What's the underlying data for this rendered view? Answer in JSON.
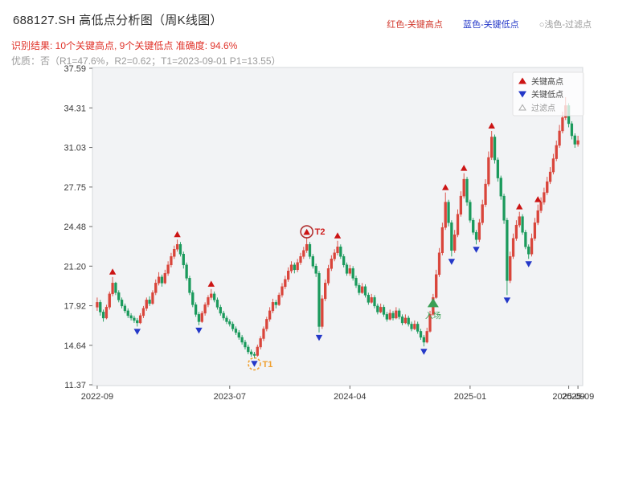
{
  "header": {
    "title": "688127.SH 高低点分析图（周K线图）",
    "legend_top": [
      {
        "label": "红色-关键高点",
        "color": "#d23a2e"
      },
      {
        "label": "蓝色-关键低点",
        "color": "#2438c8"
      },
      {
        "label": "○浅色-过滤点",
        "color": "#9a9a9a"
      }
    ],
    "result_line": "识别结果: 10个关键高点, 9个关键低点  准确度: 94.6%",
    "result_color": "#e0342b",
    "quality_line": "优质：否（R1=47.6%，R2=0.62；T1=2023-09-01 P1=13.55）",
    "quality_color": "#9b9b9b"
  },
  "chart_data": {
    "type": "candlestick",
    "title": "688127.SH 高低点分析图（周K线图）",
    "period": "weekly",
    "xlabel": "",
    "ylabel": "",
    "ylim": [
      11.37,
      37.59
    ],
    "y_ticks": [
      37.59,
      34.31,
      31.03,
      27.75,
      24.48,
      21.2,
      17.92,
      14.64,
      11.37
    ],
    "x_ticks": [
      {
        "week": 0,
        "label": "2022-09"
      },
      {
        "week": 43,
        "label": "2023-07"
      },
      {
        "week": 82,
        "label": "2024-04"
      },
      {
        "week": 121,
        "label": "2025-01"
      },
      {
        "week": 153,
        "label": "2025-09"
      },
      {
        "week": 156,
        "label": "2025-09"
      }
    ],
    "legend_items": [
      {
        "label": "关键高点",
        "type": "high"
      },
      {
        "label": "关键低点",
        "type": "low"
      },
      {
        "label": "过滤点",
        "type": "filtered"
      }
    ],
    "colors": {
      "up": "#d9453b",
      "down": "#1b9a5c",
      "high_marker": "#cc1414",
      "low_marker": "#2438c8",
      "entry": "#3aa055",
      "t1": "#f0a030",
      "t2": "#b03030",
      "panel": "#f2f3f5",
      "panel_border": "#d5d8dc",
      "tick_text": "#3a3a3a"
    },
    "candles": [
      [
        17.8,
        18.6,
        17.5,
        18.2
      ],
      [
        18.2,
        18.4,
        17.1,
        17.4
      ],
      [
        17.4,
        17.6,
        16.6,
        16.9
      ],
      [
        16.9,
        18.0,
        16.8,
        17.8
      ],
      [
        17.8,
        19.1,
        17.6,
        18.9
      ],
      [
        18.9,
        20.3,
        18.7,
        19.8
      ],
      [
        19.8,
        19.9,
        18.8,
        19.0
      ],
      [
        19.0,
        19.2,
        18.2,
        18.4
      ],
      [
        18.4,
        18.6,
        17.7,
        17.9
      ],
      [
        17.9,
        18.1,
        17.3,
        17.5
      ],
      [
        17.5,
        17.7,
        16.9,
        17.1
      ],
      [
        17.1,
        17.3,
        16.7,
        16.9
      ],
      [
        16.9,
        17.1,
        16.5,
        16.7
      ],
      [
        16.7,
        16.9,
        16.2,
        16.5
      ],
      [
        16.5,
        17.3,
        16.4,
        17.1
      ],
      [
        17.1,
        17.9,
        16.9,
        17.7
      ],
      [
        17.7,
        18.6,
        17.5,
        18.4
      ],
      [
        18.4,
        18.7,
        17.9,
        18.1
      ],
      [
        18.1,
        19.2,
        18.0,
        19.0
      ],
      [
        19.0,
        20.1,
        18.8,
        19.8
      ],
      [
        19.8,
        20.7,
        19.6,
        20.3
      ],
      [
        20.3,
        20.5,
        19.5,
        19.8
      ],
      [
        19.8,
        20.9,
        19.7,
        20.6
      ],
      [
        20.6,
        21.6,
        20.4,
        21.3
      ],
      [
        21.3,
        22.3,
        21.1,
        22.0
      ],
      [
        22.0,
        22.9,
        21.8,
        22.6
      ],
      [
        22.6,
        23.4,
        22.4,
        23.0
      ],
      [
        23.0,
        23.2,
        22.0,
        22.2
      ],
      [
        22.2,
        22.4,
        21.0,
        21.3
      ],
      [
        21.3,
        21.5,
        20.0,
        20.2
      ],
      [
        20.2,
        20.4,
        18.8,
        19.0
      ],
      [
        19.0,
        19.2,
        17.8,
        18.0
      ],
      [
        18.0,
        18.2,
        17.0,
        17.2
      ],
      [
        17.2,
        17.4,
        16.3,
        16.6
      ],
      [
        16.6,
        17.5,
        16.5,
        17.3
      ],
      [
        17.3,
        18.2,
        17.1,
        18.0
      ],
      [
        18.0,
        18.8,
        17.8,
        18.6
      ],
      [
        18.6,
        19.3,
        18.4,
        18.9
      ],
      [
        18.9,
        19.1,
        18.2,
        18.4
      ],
      [
        18.4,
        18.6,
        17.6,
        17.8
      ],
      [
        17.8,
        18.0,
        17.1,
        17.3
      ],
      [
        17.3,
        17.5,
        16.7,
        16.9
      ],
      [
        16.9,
        17.1,
        16.4,
        16.6
      ],
      [
        16.6,
        16.8,
        16.2,
        16.4
      ],
      [
        16.4,
        16.6,
        15.8,
        16.0
      ],
      [
        16.0,
        16.2,
        15.5,
        15.7
      ],
      [
        15.7,
        15.9,
        15.1,
        15.3
      ],
      [
        15.3,
        15.5,
        14.7,
        14.9
      ],
      [
        14.9,
        15.1,
        14.3,
        14.5
      ],
      [
        14.5,
        14.7,
        13.9,
        14.1
      ],
      [
        14.1,
        14.3,
        13.7,
        13.9
      ],
      [
        13.9,
        14.1,
        13.55,
        13.8
      ],
      [
        13.8,
        14.7,
        13.7,
        14.5
      ],
      [
        14.5,
        15.4,
        14.3,
        15.2
      ],
      [
        15.2,
        16.2,
        15.0,
        16.0
      ],
      [
        16.0,
        17.0,
        15.8,
        16.8
      ],
      [
        16.8,
        17.8,
        16.6,
        17.5
      ],
      [
        17.5,
        18.5,
        17.3,
        18.2
      ],
      [
        18.2,
        18.4,
        17.7,
        18.0
      ],
      [
        18.0,
        19.0,
        17.9,
        18.8
      ],
      [
        18.8,
        19.8,
        18.6,
        19.5
      ],
      [
        19.5,
        20.4,
        19.3,
        20.1
      ],
      [
        20.1,
        21.1,
        19.9,
        20.8
      ],
      [
        20.8,
        21.6,
        20.6,
        21.3
      ],
      [
        21.3,
        21.5,
        20.6,
        20.9
      ],
      [
        20.9,
        21.8,
        20.7,
        21.5
      ],
      [
        21.5,
        22.3,
        21.3,
        22.0
      ],
      [
        22.0,
        22.8,
        21.8,
        22.5
      ],
      [
        22.5,
        23.6,
        22.3,
        23.0
      ],
      [
        23.0,
        23.2,
        21.8,
        22.0
      ],
      [
        22.0,
        22.2,
        21.0,
        21.2
      ],
      [
        21.2,
        21.4,
        20.3,
        20.6
      ],
      [
        20.6,
        20.8,
        15.7,
        16.2
      ],
      [
        16.2,
        18.8,
        16.0,
        18.5
      ],
      [
        18.5,
        20.1,
        18.3,
        19.8
      ],
      [
        19.8,
        21.3,
        19.6,
        21.0
      ],
      [
        21.0,
        22.1,
        20.8,
        21.8
      ],
      [
        21.8,
        22.6,
        21.6,
        22.3
      ],
      [
        22.3,
        23.3,
        22.1,
        22.8
      ],
      [
        22.8,
        23.0,
        21.8,
        22.0
      ],
      [
        22.0,
        22.2,
        21.1,
        21.3
      ],
      [
        21.3,
        21.5,
        20.4,
        20.6
      ],
      [
        20.6,
        21.3,
        20.4,
        21.0
      ],
      [
        21.0,
        21.2,
        20.0,
        20.2
      ],
      [
        20.2,
        20.4,
        19.4,
        19.6
      ],
      [
        19.6,
        19.8,
        18.8,
        19.0
      ],
      [
        19.0,
        19.8,
        18.9,
        19.5
      ],
      [
        19.5,
        19.7,
        18.6,
        18.8
      ],
      [
        18.8,
        19.0,
        18.0,
        18.2
      ],
      [
        18.2,
        18.9,
        18.1,
        18.6
      ],
      [
        18.6,
        18.8,
        17.7,
        17.9
      ],
      [
        17.9,
        18.1,
        17.2,
        17.4
      ],
      [
        17.4,
        18.1,
        17.3,
        17.8
      ],
      [
        17.8,
        18.0,
        17.0,
        17.2
      ],
      [
        17.2,
        17.4,
        16.6,
        16.8
      ],
      [
        16.8,
        17.6,
        16.7,
        17.3
      ],
      [
        17.3,
        17.5,
        16.7,
        16.9
      ],
      [
        16.9,
        17.8,
        16.8,
        17.5
      ],
      [
        17.5,
        17.7,
        16.8,
        17.0
      ],
      [
        17.0,
        17.2,
        16.3,
        16.5
      ],
      [
        16.5,
        17.2,
        16.4,
        16.9
      ],
      [
        16.9,
        17.1,
        16.2,
        16.4
      ],
      [
        16.4,
        16.6,
        15.8,
        16.0
      ],
      [
        16.0,
        16.7,
        15.9,
        16.4
      ],
      [
        16.4,
        16.6,
        15.6,
        15.8
      ],
      [
        15.8,
        16.0,
        15.1,
        15.3
      ],
      [
        15.3,
        15.5,
        14.55,
        14.9
      ],
      [
        14.9,
        16.1,
        14.8,
        15.8
      ],
      [
        15.8,
        17.5,
        15.7,
        17.2
      ],
      [
        17.2,
        18.9,
        17.1,
        18.6
      ],
      [
        18.6,
        20.9,
        18.5,
        20.5
      ],
      [
        20.5,
        22.7,
        20.3,
        22.3
      ],
      [
        22.3,
        24.8,
        22.1,
        24.4
      ],
      [
        24.4,
        27.3,
        24.2,
        26.5
      ],
      [
        26.5,
        26.7,
        24.5,
        24.8
      ],
      [
        24.8,
        25.0,
        22.0,
        22.5
      ],
      [
        22.5,
        24.2,
        22.3,
        23.8
      ],
      [
        23.8,
        25.9,
        23.6,
        25.5
      ],
      [
        25.5,
        27.4,
        25.3,
        27.0
      ],
      [
        27.0,
        28.9,
        26.8,
        28.4
      ],
      [
        28.4,
        28.6,
        26.2,
        26.5
      ],
      [
        26.5,
        26.7,
        24.8,
        25.0
      ],
      [
        25.0,
        25.2,
        23.8,
        24.0
      ],
      [
        24.0,
        24.2,
        23.0,
        23.4
      ],
      [
        23.4,
        25.1,
        23.2,
        24.8
      ],
      [
        24.8,
        26.7,
        24.6,
        26.3
      ],
      [
        26.3,
        28.4,
        26.1,
        28.0
      ],
      [
        28.0,
        30.7,
        27.8,
        30.2
      ],
      [
        30.2,
        32.4,
        30.0,
        31.9
      ],
      [
        31.9,
        32.1,
        29.7,
        30.0
      ],
      [
        30.0,
        30.2,
        28.2,
        28.5
      ],
      [
        28.5,
        28.7,
        26.7,
        27.0
      ],
      [
        27.0,
        27.2,
        24.7,
        25.0
      ],
      [
        25.0,
        25.2,
        18.8,
        20.0
      ],
      [
        20.0,
        22.4,
        19.8,
        22.0
      ],
      [
        22.0,
        23.9,
        21.8,
        23.5
      ],
      [
        23.5,
        25.0,
        23.3,
        24.6
      ],
      [
        24.6,
        25.7,
        24.4,
        25.3
      ],
      [
        25.3,
        25.5,
        23.8,
        24.0
      ],
      [
        24.0,
        24.2,
        22.6,
        22.8
      ],
      [
        22.8,
        23.0,
        21.8,
        22.2
      ],
      [
        22.2,
        23.9,
        22.0,
        23.5
      ],
      [
        23.5,
        25.2,
        23.3,
        24.8
      ],
      [
        24.8,
        26.3,
        24.6,
        25.8
      ],
      [
        25.8,
        26.9,
        25.6,
        26.5
      ],
      [
        26.5,
        27.7,
        26.3,
        27.3
      ],
      [
        27.3,
        28.6,
        27.1,
        28.2
      ],
      [
        28.2,
        29.4,
        28.0,
        29.0
      ],
      [
        29.0,
        30.5,
        28.8,
        30.1
      ],
      [
        30.1,
        31.6,
        29.9,
        31.2
      ],
      [
        31.2,
        32.9,
        31.0,
        32.4
      ],
      [
        32.4,
        34.0,
        32.2,
        33.5
      ],
      [
        33.5,
        35.2,
        33.3,
        34.5
      ],
      [
        34.5,
        34.7,
        32.7,
        33.0
      ],
      [
        33.0,
        33.2,
        31.7,
        32.0
      ],
      [
        32.0,
        32.2,
        31.0,
        31.3
      ],
      [
        31.3,
        32.0,
        31.1,
        31.6
      ]
    ],
    "high_points": [
      {
        "week": 5,
        "price": 20.3
      },
      {
        "week": 26,
        "price": 23.4
      },
      {
        "week": 37,
        "price": 19.3
      },
      {
        "week": 68,
        "price": 23.6,
        "label": "T2",
        "circled": true
      },
      {
        "week": 78,
        "price": 23.3
      },
      {
        "week": 113,
        "price": 27.3
      },
      {
        "week": 119,
        "price": 28.9
      },
      {
        "week": 128,
        "price": 32.4
      },
      {
        "week": 137,
        "price": 25.7
      },
      {
        "week": 143,
        "price": 26.3
      }
    ],
    "low_points": [
      {
        "week": 13,
        "price": 16.2
      },
      {
        "week": 33,
        "price": 16.3
      },
      {
        "week": 51,
        "price": 13.55,
        "label": "T1",
        "circled": true
      },
      {
        "week": 72,
        "price": 15.7
      },
      {
        "week": 106,
        "price": 14.55
      },
      {
        "week": 115,
        "price": 22.0
      },
      {
        "week": 123,
        "price": 23.0
      },
      {
        "week": 133,
        "price": 18.8
      },
      {
        "week": 140,
        "price": 21.8
      }
    ],
    "entry_point": {
      "week": 109,
      "price": 17.8,
      "label": "入场"
    }
  }
}
